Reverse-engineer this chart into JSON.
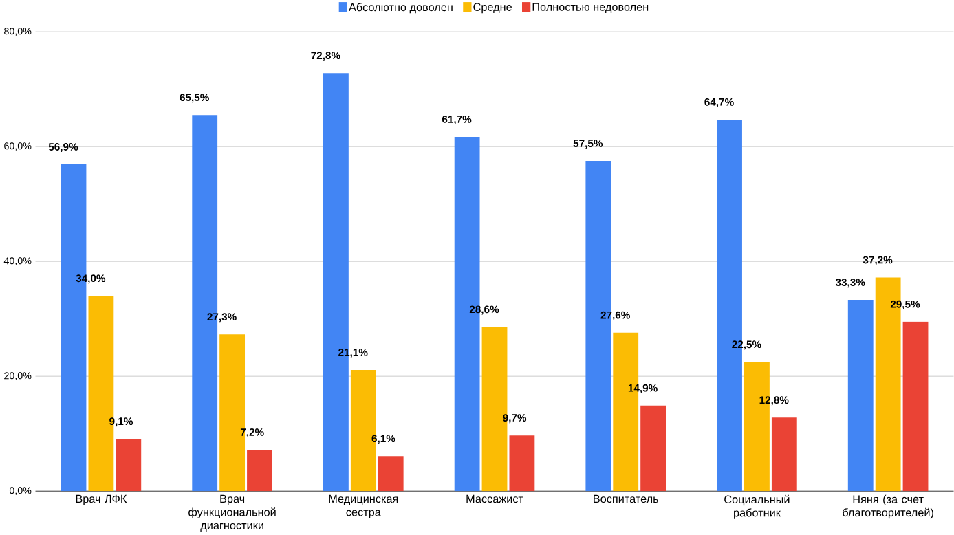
{
  "chart_data": {
    "type": "bar",
    "categories": [
      "Врач ЛФК",
      "Врач функциональной диагностики",
      "Медицинская сестра",
      "Массажист",
      "Воспитатель",
      "Социальный работник",
      "Няня (за счет благотворителей)"
    ],
    "series": [
      {
        "name": "Абсолютно доволен",
        "color": "#4285f4",
        "values": [
          56.9,
          65.5,
          72.8,
          61.7,
          57.5,
          64.7,
          33.3
        ],
        "value_labels": [
          "56,9%",
          "65,5%",
          "72,8%",
          "61,7%",
          "57,5%",
          "64,7%",
          "33,3%"
        ]
      },
      {
        "name": "Средне",
        "color": "#fbbc04",
        "values": [
          34.0,
          27.3,
          21.1,
          28.6,
          27.6,
          22.5,
          37.2
        ],
        "value_labels": [
          "34,0%",
          "27,3%",
          "21,1%",
          "28,6%",
          "27,6%",
          "22,5%",
          "37,2%"
        ]
      },
      {
        "name": "Полностью недоволен",
        "color": "#ea4335",
        "values": [
          9.1,
          7.2,
          6.1,
          9.7,
          14.9,
          12.8,
          29.5
        ],
        "value_labels": [
          "9,1%",
          "7,2%",
          "6,1%",
          "9,7%",
          "14,9%",
          "12,8%",
          "29,5%"
        ]
      }
    ],
    "ylim": [
      0,
      80
    ],
    "yticks": [
      {
        "value": 0,
        "label": "0,0%"
      },
      {
        "value": 20,
        "label": "20,0%"
      },
      {
        "value": 40,
        "label": "40,0%"
      },
      {
        "value": 60,
        "label": "60,0%"
      },
      {
        "value": 80,
        "label": "80,0%"
      }
    ],
    "grid": "y",
    "legend": "top"
  }
}
